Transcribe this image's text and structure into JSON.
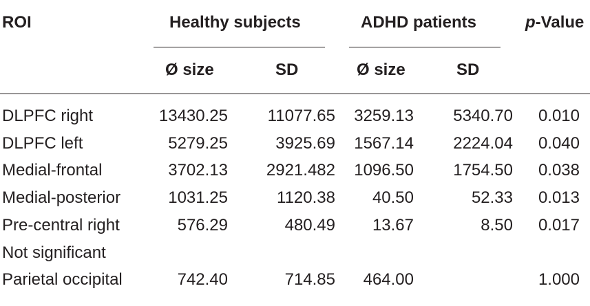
{
  "header": {
    "roi": "ROI",
    "healthy": "Healthy subjects",
    "adhd": "ADHD patients",
    "p_prefix": "p",
    "p_suffix": "-Value",
    "size": "Ø size",
    "sd": "SD"
  },
  "rows": [
    {
      "roi": "DLPFC right",
      "h_size": "13430.25",
      "h_sd": "11077.65",
      "a_size": "3259.13",
      "a_sd": "5340.70",
      "p": "0.010"
    },
    {
      "roi": "DLPFC left",
      "h_size": "5279.25",
      "h_sd": "3925.69",
      "a_size": "1567.14",
      "a_sd": "2224.04",
      "p": "0.040"
    },
    {
      "roi": "Medial-frontal",
      "h_size": "3702.13",
      "h_sd": "2921.482",
      "a_size": "1096.50",
      "a_sd": "1754.50",
      "p": "0.038"
    },
    {
      "roi": "Medial-posterior",
      "h_size": "1031.25",
      "h_sd": "1120.38",
      "a_size": "40.50",
      "a_sd": "52.33",
      "p": "0.013"
    },
    {
      "roi": "Pre-central right",
      "h_size": "576.29",
      "h_sd": "480.49",
      "a_size": "13.67",
      "a_sd": "8.50",
      "p": "0.017"
    },
    {
      "roi": "Not significant",
      "h_size": "",
      "h_sd": "",
      "a_size": "",
      "a_sd": "",
      "p": ""
    },
    {
      "roi": "Parietal occipital",
      "h_size": "742.40",
      "h_sd": "714.85",
      "a_size": "464.00",
      "a_sd": "",
      "p": "1.000"
    }
  ]
}
